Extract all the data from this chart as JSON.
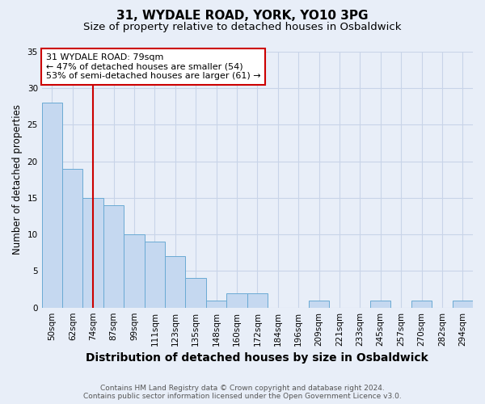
{
  "title1": "31, WYDALE ROAD, YORK, YO10 3PG",
  "title2": "Size of property relative to detached houses in Osbaldwick",
  "xlabel": "Distribution of detached houses by size in Osbaldwick",
  "ylabel": "Number of detached properties",
  "bar_labels": [
    "50sqm",
    "62sqm",
    "74sqm",
    "87sqm",
    "99sqm",
    "111sqm",
    "123sqm",
    "135sqm",
    "148sqm",
    "160sqm",
    "172sqm",
    "184sqm",
    "196sqm",
    "209sqm",
    "221sqm",
    "233sqm",
    "245sqm",
    "257sqm",
    "270sqm",
    "282sqm",
    "294sqm"
  ],
  "bar_values": [
    28,
    19,
    15,
    14,
    10,
    9,
    7,
    4,
    1,
    2,
    2,
    0,
    0,
    1,
    0,
    0,
    1,
    0,
    1,
    0,
    1
  ],
  "bar_color": "#c5d8f0",
  "bar_edge_color": "#6aaad4",
  "vline_color": "#cc0000",
  "vline_position": 2.5,
  "annotation_text": "31 WYDALE ROAD: 79sqm\n← 47% of detached houses are smaller (54)\n53% of semi-detached houses are larger (61) →",
  "annotation_box_color": "#ffffff",
  "annotation_box_edge_color": "#cc0000",
  "ylim": [
    0,
    35
  ],
  "yticks": [
    0,
    5,
    10,
    15,
    20,
    25,
    30,
    35
  ],
  "grid_color": "#c8d4e8",
  "bg_color": "#e8eef8",
  "plot_bg_color": "#e8eef8",
  "footer1": "Contains HM Land Registry data © Crown copyright and database right 2024.",
  "footer2": "Contains public sector information licensed under the Open Government Licence v3.0.",
  "title_fontsize": 11,
  "subtitle_fontsize": 9.5,
  "xlabel_fontsize": 10,
  "ylabel_fontsize": 8.5,
  "tick_fontsize": 7.5,
  "annotation_fontsize": 8,
  "footer_fontsize": 6.5
}
